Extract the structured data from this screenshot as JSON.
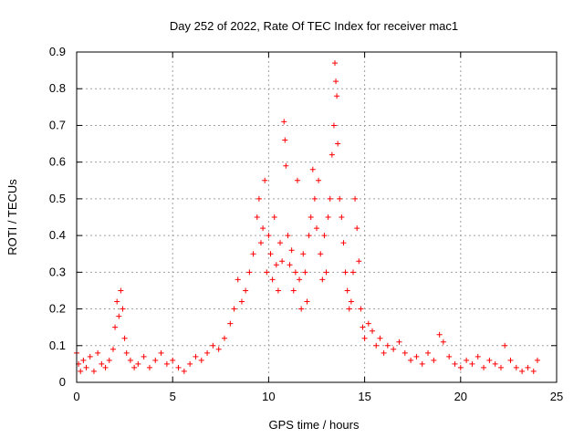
{
  "chart_data": {
    "type": "scatter",
    "title": "Day 252 of 2022, Rate Of TEC Index for receiver mac1",
    "xlabel": "GPS time / hours",
    "ylabel": "ROTI / TECUs",
    "xlim": [
      0,
      25
    ],
    "ylim": [
      0,
      0.9
    ],
    "xticks": [
      0,
      5,
      10,
      15,
      20,
      25
    ],
    "xtick_labels": [
      "0",
      "5",
      "10",
      "15",
      "20",
      "25"
    ],
    "yticks": [
      0,
      0.1,
      0.2,
      0.3,
      0.4,
      0.5,
      0.6,
      0.7,
      0.8,
      0.9
    ],
    "ytick_labels": [
      "0",
      "0.1",
      "0.2",
      "0.3",
      "0.4",
      "0.5",
      "0.6",
      "0.7",
      "0.8",
      "0.9"
    ],
    "grid": true,
    "marker": "+",
    "color": "#ff0000",
    "series": [
      {
        "x": [
          0.0,
          0.1,
          0.2,
          0.35,
          0.5,
          0.7,
          0.9,
          1.1,
          1.3,
          1.5,
          1.7,
          1.9,
          2.0,
          2.1,
          2.2,
          2.3,
          2.4,
          2.5,
          2.6,
          2.8,
          3.0,
          3.2,
          3.5,
          3.8,
          4.1,
          4.4,
          4.7,
          5.0,
          5.3,
          5.6,
          5.9,
          6.2,
          6.5,
          6.8,
          7.1,
          7.4,
          7.7,
          8.0,
          8.2,
          8.4,
          8.6,
          8.8,
          9.0,
          9.2,
          9.4,
          9.5,
          9.6,
          9.7,
          9.8,
          9.9,
          10.0,
          10.1,
          10.2,
          10.3,
          10.4,
          10.5,
          10.6,
          10.7,
          10.8,
          10.85,
          10.9,
          11.0,
          11.1,
          11.2,
          11.3,
          11.4,
          11.5,
          11.6,
          11.7,
          11.8,
          11.9,
          12.0,
          12.1,
          12.2,
          12.3,
          12.4,
          12.5,
          12.6,
          12.7,
          12.8,
          12.9,
          13.0,
          13.1,
          13.2,
          13.3,
          13.4,
          13.45,
          13.5,
          13.55,
          13.6,
          13.7,
          13.8,
          13.9,
          14.0,
          14.1,
          14.2,
          14.3,
          14.4,
          14.5,
          14.6,
          14.7,
          14.8,
          14.9,
          15.0,
          15.2,
          15.4,
          15.6,
          15.8,
          16.0,
          16.2,
          16.5,
          16.8,
          17.1,
          17.4,
          17.7,
          18.0,
          18.3,
          18.6,
          18.9,
          19.1,
          19.4,
          19.7,
          20.0,
          20.3,
          20.6,
          20.9,
          21.2,
          21.5,
          21.8,
          22.1,
          22.3,
          22.6,
          22.9,
          23.2,
          23.5,
          23.8,
          24.0
        ],
        "y": [
          0.08,
          0.05,
          0.03,
          0.06,
          0.04,
          0.07,
          0.03,
          0.08,
          0.05,
          0.04,
          0.06,
          0.09,
          0.15,
          0.22,
          0.18,
          0.25,
          0.2,
          0.12,
          0.08,
          0.06,
          0.04,
          0.05,
          0.07,
          0.04,
          0.06,
          0.08,
          0.05,
          0.06,
          0.04,
          0.03,
          0.05,
          0.07,
          0.06,
          0.08,
          0.1,
          0.09,
          0.12,
          0.16,
          0.2,
          0.28,
          0.22,
          0.25,
          0.3,
          0.35,
          0.45,
          0.5,
          0.38,
          0.42,
          0.55,
          0.3,
          0.4,
          0.35,
          0.28,
          0.45,
          0.32,
          0.25,
          0.38,
          0.33,
          0.71,
          0.66,
          0.59,
          0.4,
          0.32,
          0.36,
          0.25,
          0.3,
          0.55,
          0.28,
          0.2,
          0.35,
          0.3,
          0.22,
          0.4,
          0.45,
          0.58,
          0.5,
          0.42,
          0.55,
          0.35,
          0.28,
          0.4,
          0.3,
          0.45,
          0.5,
          0.62,
          0.7,
          0.87,
          0.82,
          0.78,
          0.65,
          0.5,
          0.45,
          0.38,
          0.3,
          0.25,
          0.2,
          0.22,
          0.3,
          0.5,
          0.42,
          0.33,
          0.2,
          0.15,
          0.12,
          0.16,
          0.14,
          0.1,
          0.12,
          0.08,
          0.1,
          0.09,
          0.11,
          0.08,
          0.06,
          0.07,
          0.05,
          0.08,
          0.06,
          0.13,
          0.11,
          0.07,
          0.05,
          0.04,
          0.06,
          0.05,
          0.07,
          0.04,
          0.06,
          0.05,
          0.04,
          0.1,
          0.06,
          0.04,
          0.03,
          0.04,
          0.03,
          0.06
        ]
      }
    ]
  }
}
